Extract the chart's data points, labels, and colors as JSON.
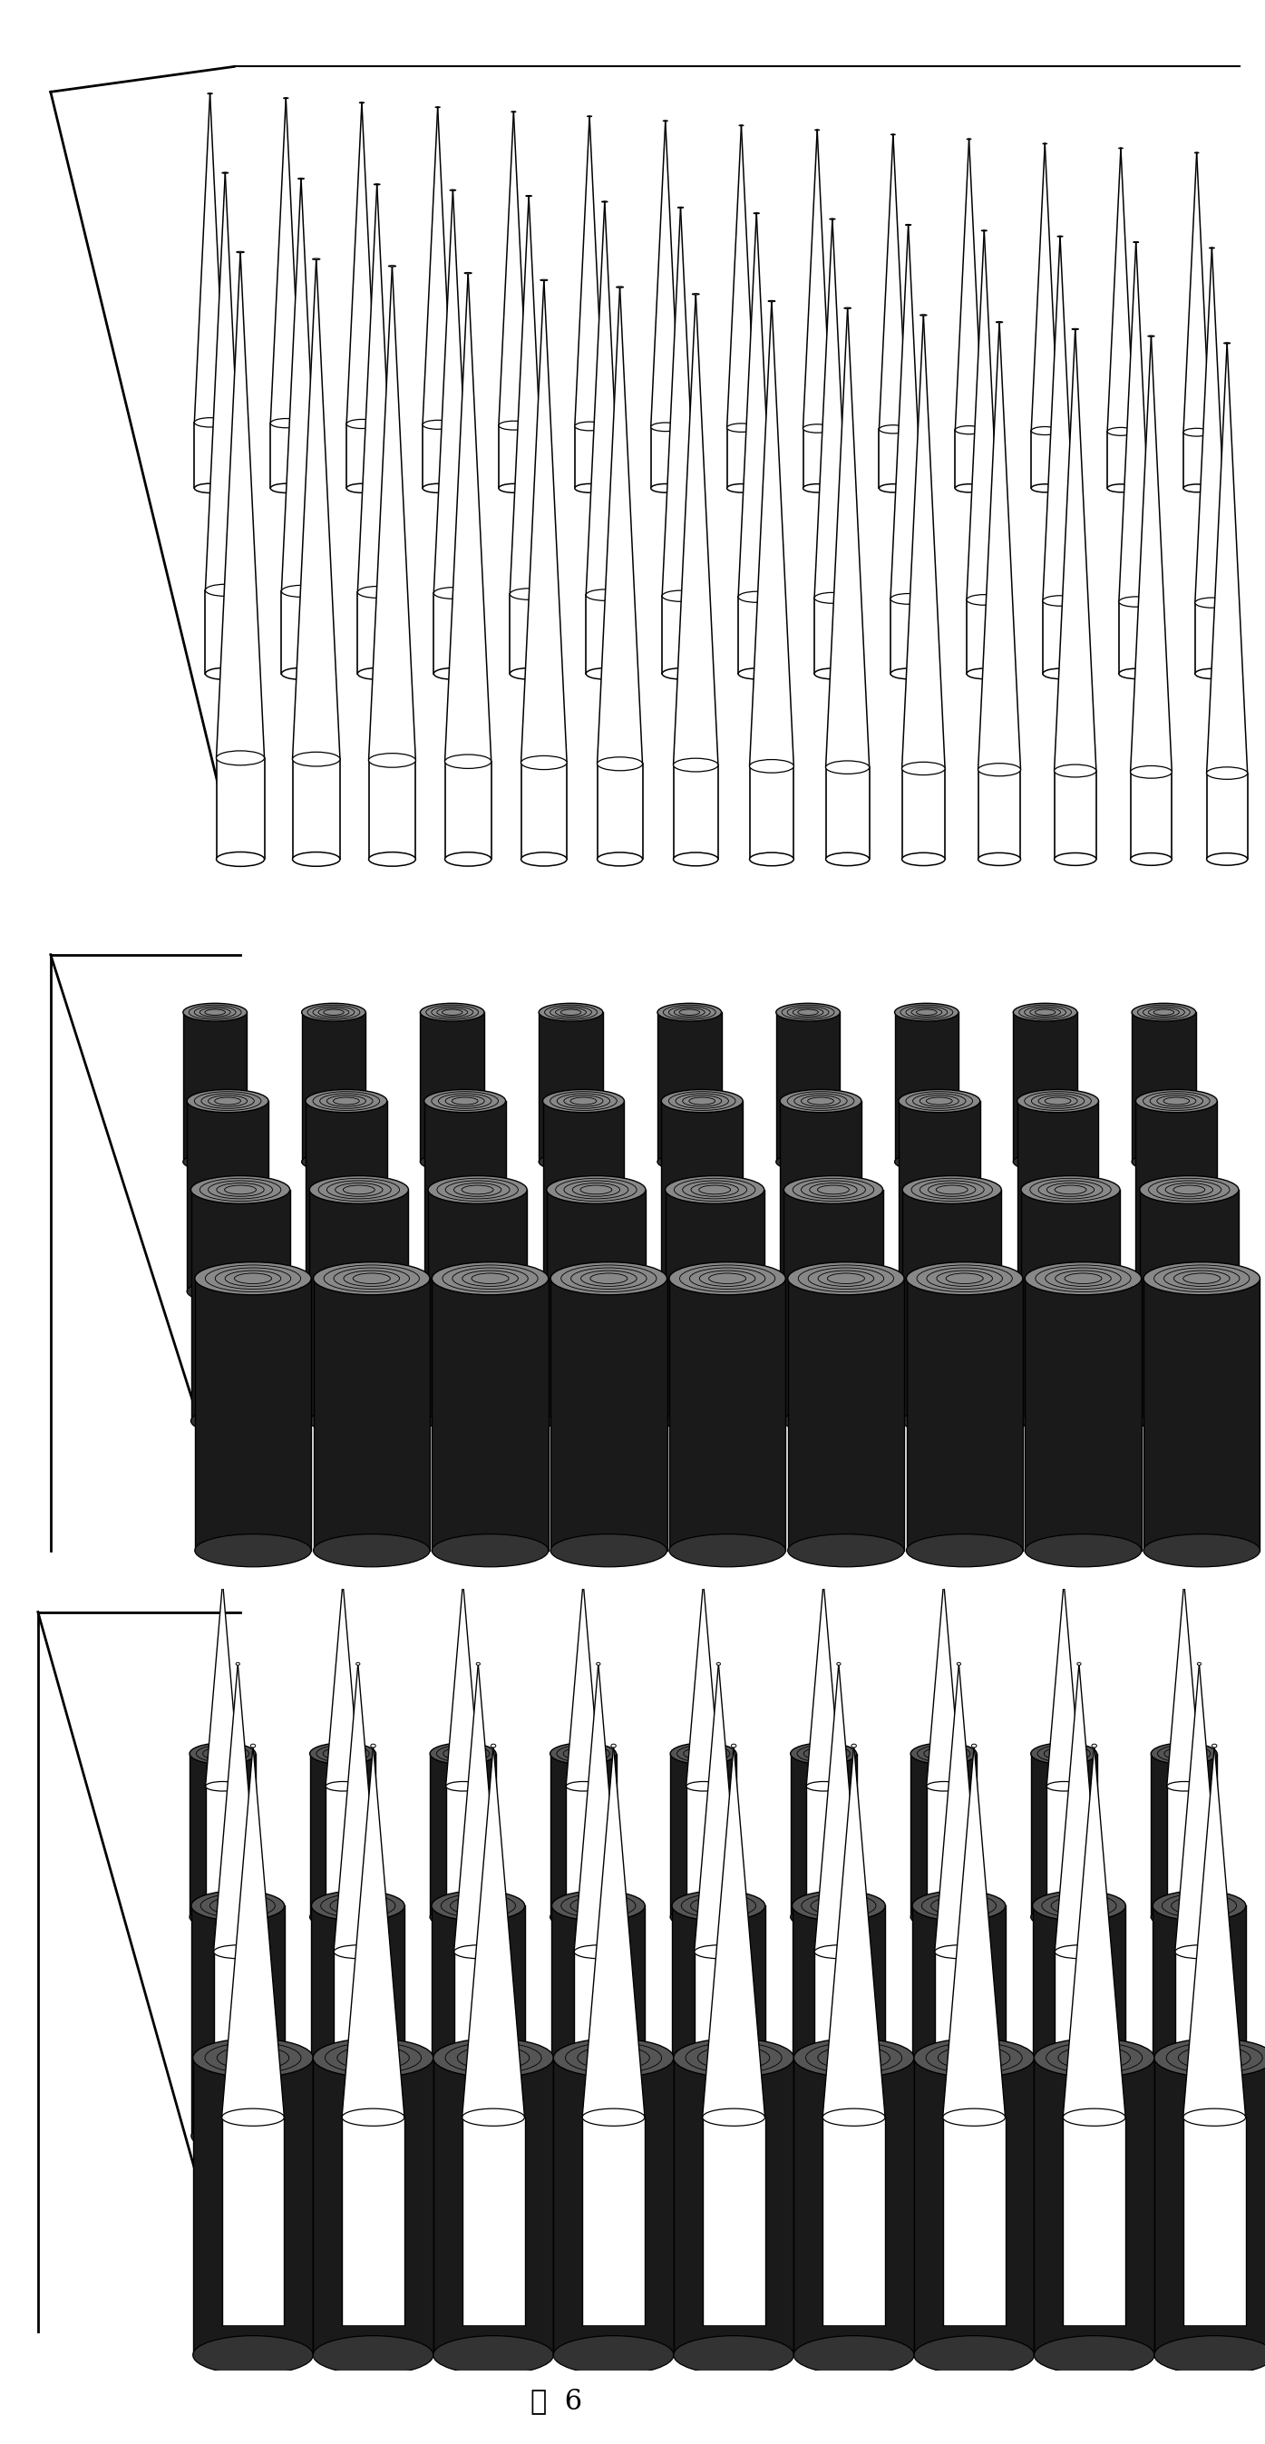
{
  "figure_label": "图  6",
  "bg_color": "#ffffff",
  "line_color": "#000000",
  "stipple_color": "#444444",
  "panel1_n_cols": 14,
  "panel1_n_rows": 3,
  "panel2_n_cols": 9,
  "panel2_n_rows": 4,
  "panel3_n_cols": 9,
  "panel3_n_rows": 3
}
